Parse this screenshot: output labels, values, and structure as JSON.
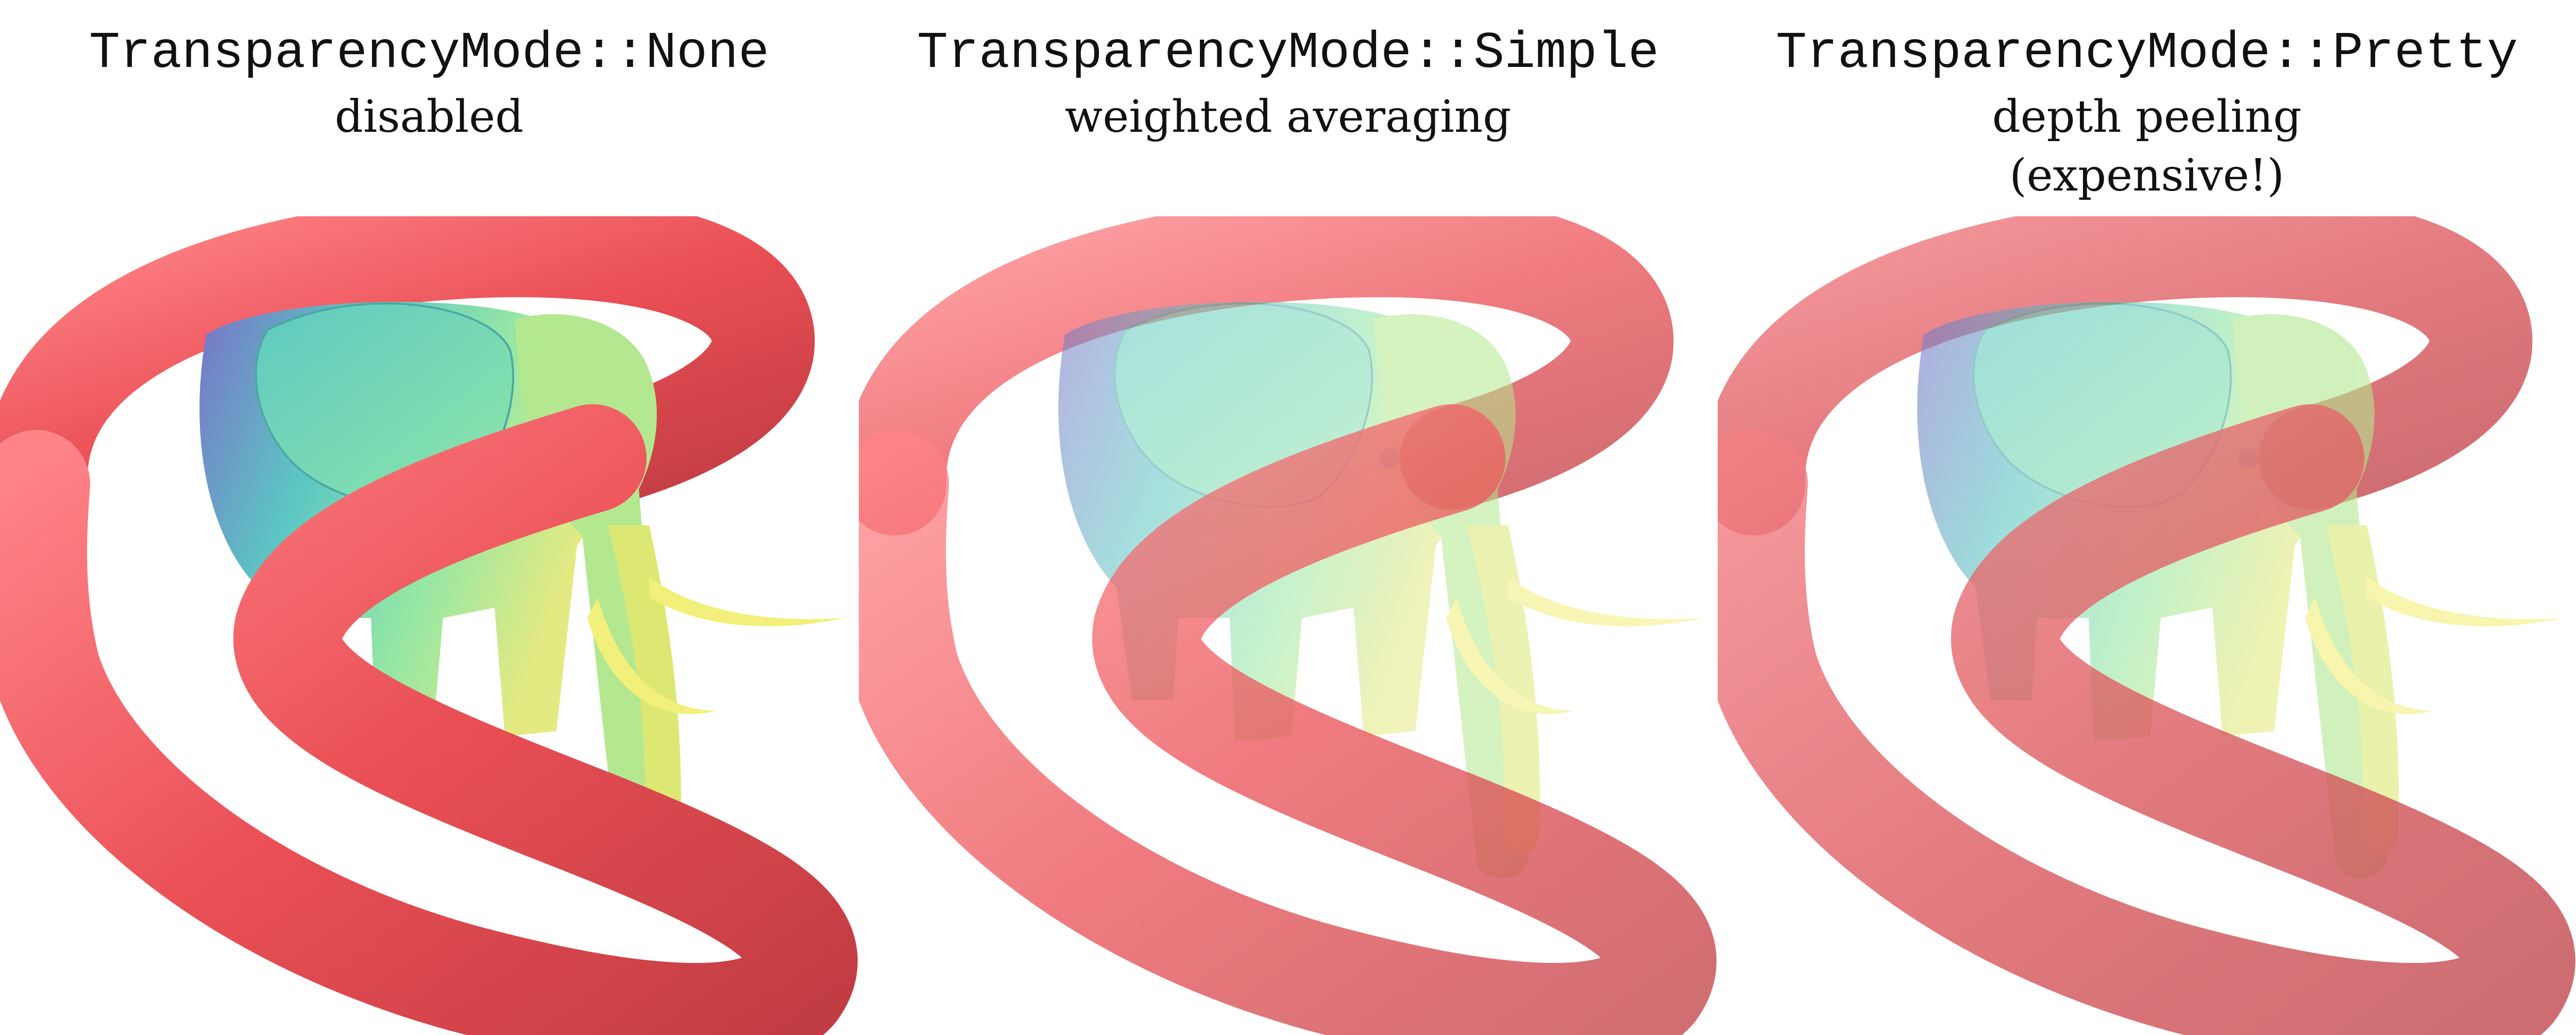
{
  "panels": [
    {
      "mode": "TransparencyMode::None",
      "desc_lines": [
        "disabled"
      ],
      "alpha": 1.0,
      "blend": "opaque"
    },
    {
      "mode": "TransparencyMode::Simple",
      "desc_lines": [
        "weighted averaging"
      ],
      "alpha": 0.55,
      "blend": "average"
    },
    {
      "mode": "TransparencyMode::Pretty",
      "desc_lines": [
        "depth peeling",
        "(expensive!)"
      ],
      "alpha": 0.6,
      "blend": "sorted"
    }
  ],
  "colors": {
    "torus_light": "#ff7a7e",
    "torus_mid": "#ea4f55",
    "torus_dark": "#b8373d",
    "elephant_purple": "#7f78cc",
    "elephant_teal": "#57c9c2",
    "elephant_green": "#8ee8a6",
    "elephant_yellow": "#e8ec80",
    "tusk": "#f2f07a"
  }
}
